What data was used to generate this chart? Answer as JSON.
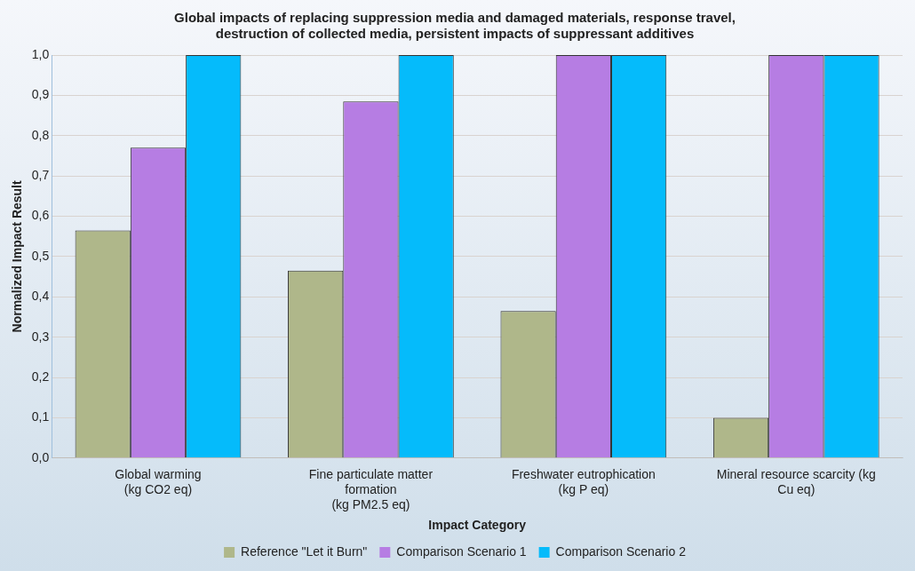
{
  "chart_data": {
    "type": "bar",
    "title": "Global impacts of replacing suppression media and damaged materials, response travel,\ndestruction of collected media, persistent impacts of suppressant additives",
    "xlabel": "Impact Category",
    "ylabel": "Normalized Impact Result",
    "categories": [
      "Global warming\n(kg CO2 eq)",
      "Fine particulate matter\nformation\n(kg PM2.5 eq)",
      "Freshwater eutrophication\n(kg P eq)",
      "Mineral resource scarcity (kg\nCu eq)"
    ],
    "series": [
      {
        "name": "Reference \"Let it Burn\"",
        "color": "#afb78a",
        "values": [
          0.565,
          0.465,
          0.365,
          0.1
        ]
      },
      {
        "name": "Comparison Scenario 1",
        "color": "#b67de3",
        "values": [
          0.77,
          0.885,
          1.0,
          1.0
        ]
      },
      {
        "name": "Comparison Scenario 2",
        "color": "#05bbfb",
        "values": [
          1.0,
          1.0,
          1.0,
          1.0
        ]
      }
    ],
    "ylim": [
      0,
      1
    ],
    "yticks": [
      {
        "value": 0,
        "label": "0,0"
      },
      {
        "value": 0.1,
        "label": "0,1"
      },
      {
        "value": 0.2,
        "label": "0,2"
      },
      {
        "value": 0.3,
        "label": "0,3"
      },
      {
        "value": 0.4,
        "label": "0,4"
      },
      {
        "value": 0.5,
        "label": "0,5"
      },
      {
        "value": 0.6,
        "label": "0,6"
      },
      {
        "value": 0.7,
        "label": "0,7"
      },
      {
        "value": 0.8,
        "label": "0,8"
      },
      {
        "value": 0.9,
        "label": "0,9"
      },
      {
        "value": 1,
        "label": "1,0"
      }
    ],
    "grid": "y",
    "legend": "bottom"
  }
}
